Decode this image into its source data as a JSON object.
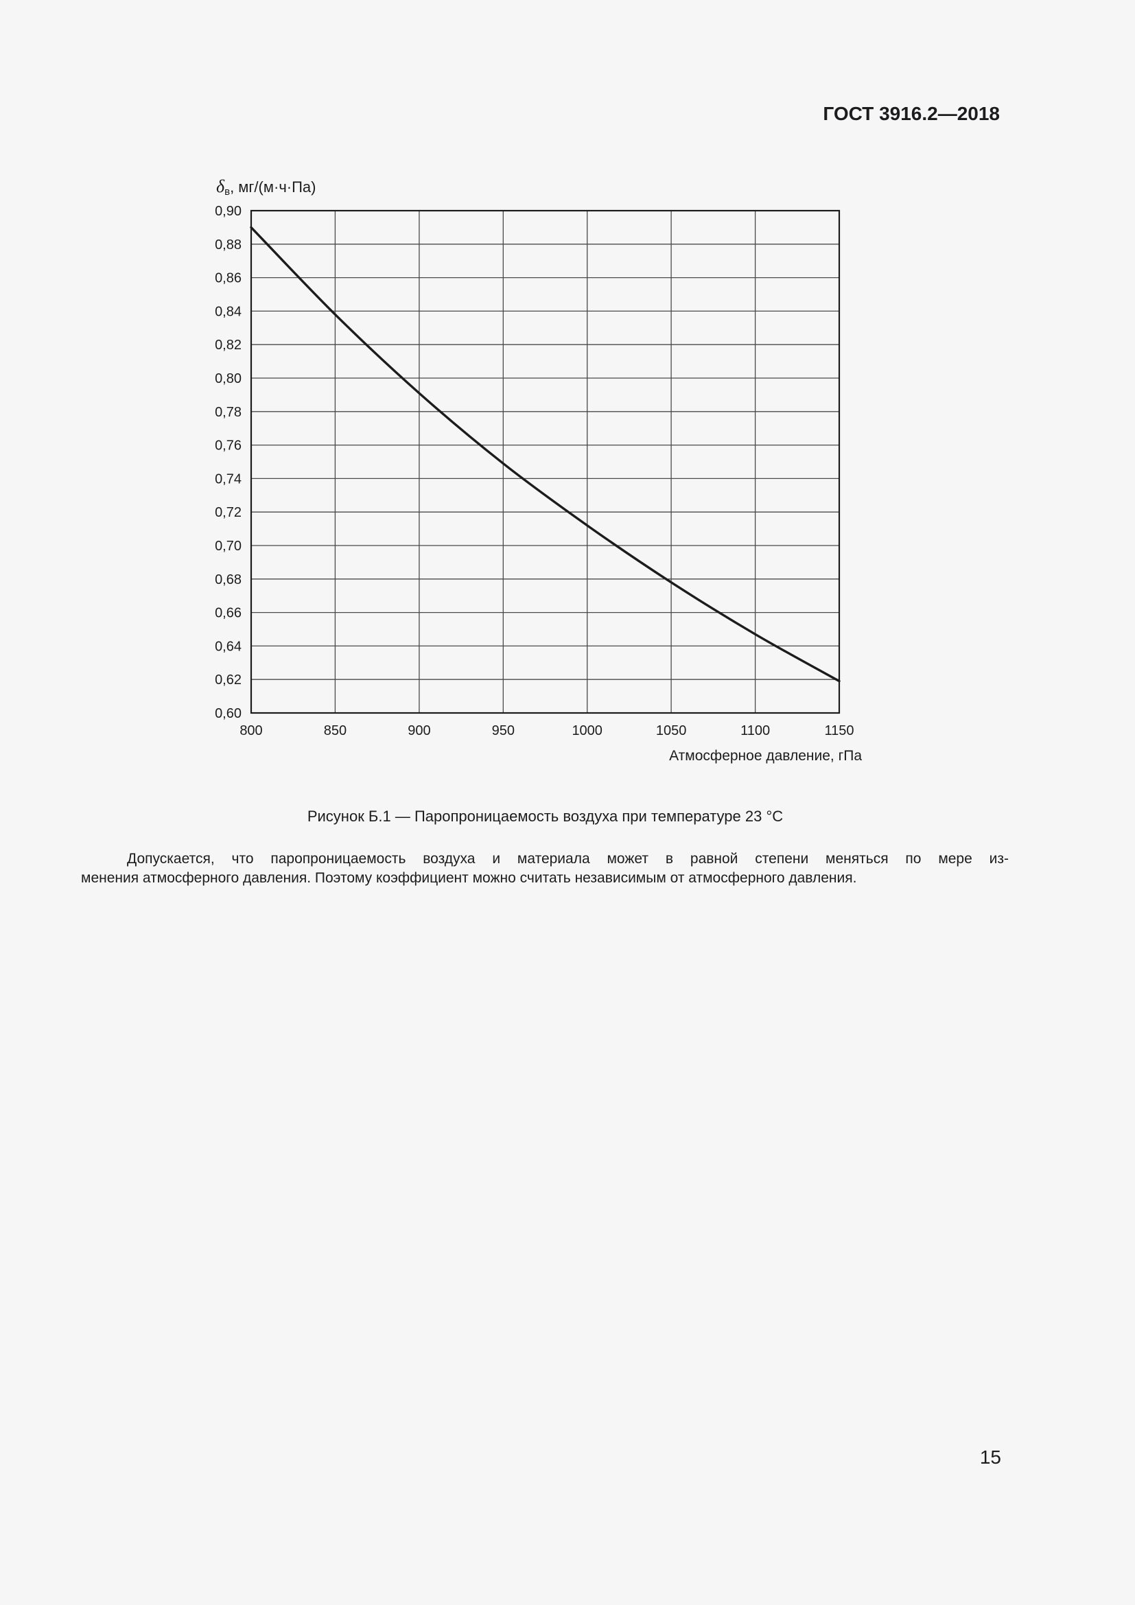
{
  "header": {
    "title": "ГОСТ 3916.2—2018"
  },
  "figure": {
    "ylabel_symbol": "δ",
    "ylabel_sub": "в",
    "ylabel_units": ", мг/(м·ч·Па)",
    "caption": "Рисунок Б.1 — Паропроницаемость воздуха при температуре 23 °С"
  },
  "paragraph": {
    "lines": [
      "Допускается, что паропроницаемость воздуха и материала может в равной степени меняться по мере из-",
      "менения атмосферного давления. Поэтому коэффициент можно считать независимым от атмосферного давления."
    ]
  },
  "page_number": "15",
  "chart_data": {
    "type": "line",
    "title": "Паропроницаемость воздуха при температуре 23 °С",
    "series_name": "Паропроницаемость воздуха",
    "x": [
      800,
      850,
      900,
      950,
      1000,
      1050,
      1100,
      1150
    ],
    "y": [
      0.89,
      0.838,
      0.791,
      0.749,
      0.712,
      0.678,
      0.647,
      0.619
    ],
    "xlabel": "Атмосферное давление, гПа",
    "ylabel": "δв, мг/(м·ч·Па)",
    "xlim": [
      800,
      1150
    ],
    "ylim": [
      0.6,
      0.9
    ],
    "x_tick_labels": [
      "800",
      "850",
      "900",
      "950",
      "1000",
      "1050",
      "1100",
      "1150"
    ],
    "y_tick_labels": [
      "0,90",
      "0,88",
      "0,86",
      "0,84",
      "0,82",
      "0,80",
      "0,78",
      "0,76",
      "0,74",
      "0,72",
      "0,70",
      "0,68",
      "0,66",
      "0,64",
      "0,62",
      "0,60"
    ],
    "grid": true,
    "legend": false,
    "line_color": "#1c1c1c",
    "grid_color": "#4a4a4a"
  }
}
